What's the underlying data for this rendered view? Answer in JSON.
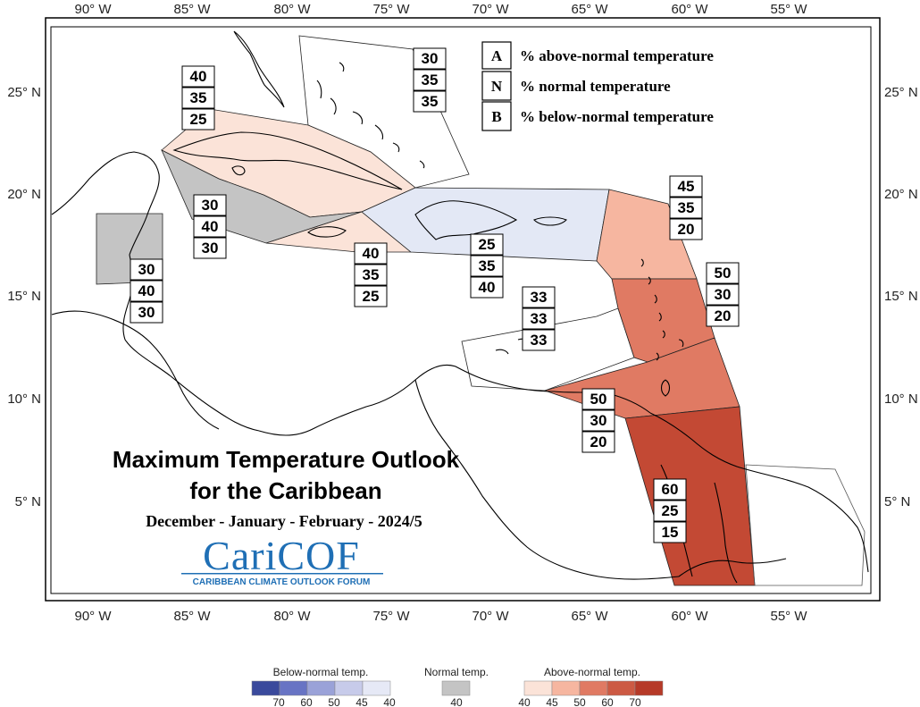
{
  "map": {
    "title_line1": "Maximum Temperature Outlook",
    "title_line2": "for the Caribbean",
    "season": "December - January - February - 2024/5",
    "logo": {
      "text": "CariCOF",
      "subtitle": "CARIBBEAN CLIMATE OUTLOOK FORUM",
      "color": "#1f6fb5"
    },
    "lon_ticks": [
      "90° W",
      "85° W",
      "80° W",
      "75° W",
      "70° W",
      "65° W",
      "60° W",
      "55° W"
    ],
    "lat_ticks_left": [
      "25° N",
      "20° N",
      "15° N",
      "10° N",
      "5° N"
    ],
    "lat_ticks_right": [
      "25° N",
      "20° N",
      "15° N",
      "10° N",
      "5° N"
    ],
    "key": [
      {
        "letter": "A",
        "label": "% above-normal temperature"
      },
      {
        "letter": "N",
        "label": "% normal temperature"
      },
      {
        "letter": "B",
        "label": "% below-normal temperature"
      }
    ],
    "regions": [
      {
        "id": "bahamas",
        "color": "#ffffff",
        "A": "30",
        "N": "35",
        "B": "35"
      },
      {
        "id": "cuba",
        "color": "#fbe3d8",
        "A": "40",
        "N": "35",
        "B": "25"
      },
      {
        "id": "cayman-belize-sea",
        "color": "#c4c4c4",
        "A": "30",
        "N": "40",
        "B": "30"
      },
      {
        "id": "belize",
        "color": "#c4c4c4",
        "A": "30",
        "N": "40",
        "B": "30"
      },
      {
        "id": "jamaica",
        "color": "#fbe3d8",
        "A": "40",
        "N": "35",
        "B": "25"
      },
      {
        "id": "hispaniola-pr",
        "color": "#e3e8f5",
        "A": "25",
        "N": "35",
        "B": "40"
      },
      {
        "id": "abc-islands",
        "color": "#ffffff",
        "A": "33",
        "N": "33",
        "B": "33"
      },
      {
        "id": "leeward-islands",
        "color": "#f6b6a0",
        "A": "45",
        "N": "35",
        "B": "20"
      },
      {
        "id": "windward-islands",
        "color": "#e07a63",
        "A": "50",
        "N": "30",
        "B": "20"
      },
      {
        "id": "trinidad-barbados",
        "color": "#e07a63",
        "A": "50",
        "N": "30",
        "B": "20"
      },
      {
        "id": "guianas",
        "color": "#c34934",
        "A": "60",
        "N": "25",
        "B": "15"
      }
    ],
    "colorbar": {
      "below_label": "Below-normal temp.",
      "normal_label": "Normal temp.",
      "above_label": "Above-normal temp.",
      "below_colors": [
        "#3a4a9c",
        "#6874c4",
        "#9aa2d8",
        "#c7cbea",
        "#e6e9f6"
      ],
      "below_ticks": [
        "70",
        "60",
        "50",
        "45",
        "40"
      ],
      "normal_color": "#c4c4c4",
      "normal_tick": "40",
      "above_colors": [
        "#fbe3d8",
        "#f6b6a0",
        "#e07a63",
        "#cc5a43",
        "#b63a28"
      ],
      "above_ticks": [
        "40",
        "45",
        "50",
        "60",
        "70"
      ]
    }
  }
}
